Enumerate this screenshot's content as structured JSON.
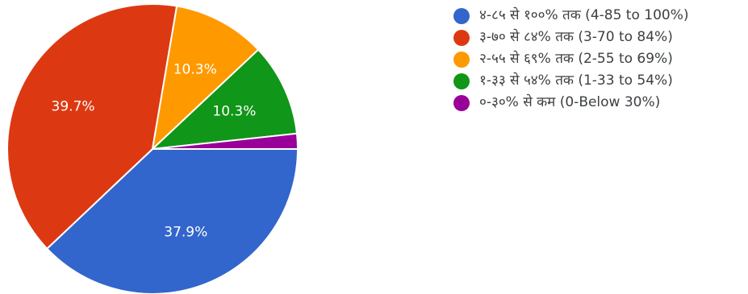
{
  "chart_data": {
    "type": "pie",
    "slices": [
      {
        "label": "४-८५ से १००% तक (4-85 to 100%)",
        "value": 37.9,
        "display": "37.9%",
        "color": "#3366cc"
      },
      {
        "label": "३-७० से ८४% तक (3-70 to 84%)",
        "value": 39.7,
        "display": "39.7%",
        "color": "#dc3912"
      },
      {
        "label": "२-५५ से ६९% तक (2-55 to 69%)",
        "value": 10.3,
        "display": "10.3%",
        "color": "#ff9900"
      },
      {
        "label": "१-३३ से ५४% तक (1-33 to 54%)",
        "value": 10.3,
        "display": "10.3%",
        "color": "#109618"
      },
      {
        "label": "०-३०% से कम (0-Below 30%)",
        "value": 1.7,
        "display": "",
        "color": "#990099"
      }
    ],
    "start_angle_deg": 90,
    "direction": "clockwise",
    "legend_position": "right"
  }
}
